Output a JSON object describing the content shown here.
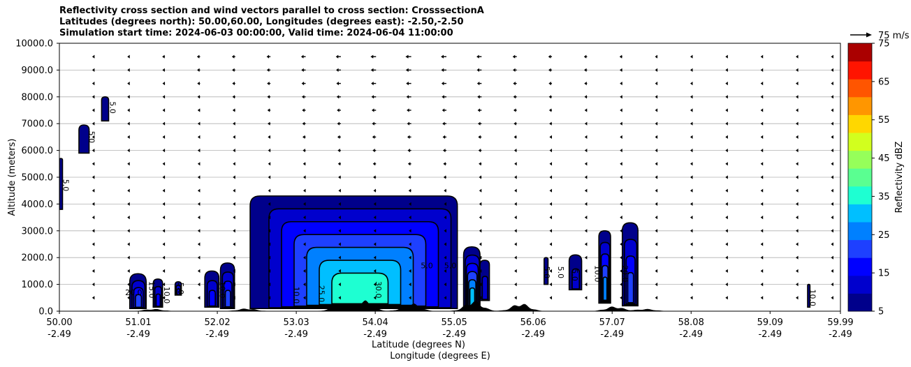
{
  "title_lines": [
    "Reflectivity cross section and wind vectors parallel to cross section: CrosssectionA",
    "Latitudes (degrees north): 50.00,60.00, Longitudes (degrees east): -2.50,-2.50",
    "Simulation start time: 2024-06-03 00:00:00, Valid time: 2024-06-04 11:00:00"
  ],
  "chart_data": {
    "type": "contourf",
    "xlabel_lat": "Latitude (degrees N)",
    "xlabel_lon": "Longitude (degrees E)",
    "ylabel": "Altitude (meters)",
    "xlim": [
      50.0,
      59.99
    ],
    "ylim": [
      0,
      10000
    ],
    "x_ticks": [
      {
        "lat": "50.00",
        "lon": "-2.49",
        "x": 50.0
      },
      {
        "lat": "51.01",
        "lon": "-2.49",
        "x": 51.01
      },
      {
        "lat": "52.02",
        "lon": "-2.49",
        "x": 52.02
      },
      {
        "lat": "53.03",
        "lon": "-2.49",
        "x": 53.03
      },
      {
        "lat": "54.04",
        "lon": "-2.49",
        "x": 54.04
      },
      {
        "lat": "55.05",
        "lon": "-2.49",
        "x": 55.05
      },
      {
        "lat": "56.06",
        "lon": "-2.49",
        "x": 56.06
      },
      {
        "lat": "57.07",
        "lon": "-2.49",
        "x": 57.07
      },
      {
        "lat": "58.08",
        "lon": "-2.49",
        "x": 58.08
      },
      {
        "lat": "59.09",
        "lon": "-2.49",
        "x": 59.09
      },
      {
        "lat": "59.99",
        "lon": "-2.49",
        "x": 59.99
      }
    ],
    "y_ticks": [
      {
        "label": "0.0",
        "v": 0
      },
      {
        "label": "1000.0",
        "v": 1000
      },
      {
        "label": "2000.0",
        "v": 2000
      },
      {
        "label": "3000.0",
        "v": 3000
      },
      {
        "label": "4000.0",
        "v": 4000
      },
      {
        "label": "5000.0",
        "v": 5000
      },
      {
        "label": "6000.0",
        "v": 6000
      },
      {
        "label": "7000.0",
        "v": 7000
      },
      {
        "label": "8000.0",
        "v": 8000
      },
      {
        "label": "9000.0",
        "v": 9000
      },
      {
        "label": "10000.0",
        "v": 10000
      }
    ],
    "colorbar": {
      "label": "Reflectivity dBZ",
      "levels": [
        5,
        10,
        15,
        20,
        25,
        30,
        35,
        40,
        45,
        50,
        55,
        60,
        65,
        70,
        75
      ],
      "colors": [
        "#00008b",
        "#0000cd",
        "#0000ff",
        "#1e40ff",
        "#0080ff",
        "#00bfff",
        "#1effd2",
        "#5aff91",
        "#96ff5a",
        "#d2ff1e",
        "#ffd700",
        "#ff9600",
        "#ff5500",
        "#ff1400",
        "#aa0000"
      ],
      "tick_labels": [
        "5",
        "15",
        "25",
        "35",
        "45",
        "55",
        "65",
        "75"
      ]
    },
    "quiver_key": {
      "label": "75 m/s",
      "value": 75
    },
    "wind_field": {
      "columns_lat": [
        50.0,
        50.45,
        50.9,
        51.35,
        51.8,
        52.25,
        52.7,
        53.15,
        53.6,
        54.05,
        54.5,
        54.95,
        55.4,
        55.85,
        56.3,
        56.75,
        57.2,
        57.65,
        58.1,
        58.55,
        59.0,
        59.45,
        59.9
      ],
      "rows_alt": [
        9500,
        9000,
        8500,
        8000,
        7500,
        7000,
        6500,
        6000,
        5500,
        5000,
        4500,
        4000,
        3500,
        3000,
        2500,
        2000,
        1500,
        1000,
        500
      ],
      "u_upper_mps": [
        -2,
        -8,
        -10,
        -12,
        -14,
        -15,
        -17,
        -20,
        -22,
        -24,
        -25,
        -24,
        -22,
        -18,
        -16,
        -14,
        -12,
        -11,
        -10,
        -8,
        -7,
        -5,
        -2
      ]
    },
    "terrain_peaks": [
      {
        "lat": 51.2,
        "height": 80
      },
      {
        "lat": 52.4,
        "height": 100
      },
      {
        "lat": 53.6,
        "height": 250
      },
      {
        "lat": 53.9,
        "height": 400
      },
      {
        "lat": 54.5,
        "height": 300
      },
      {
        "lat": 55.3,
        "height": 400
      },
      {
        "lat": 55.9,
        "height": 300
      },
      {
        "lat": 57.1,
        "height": 180
      },
      {
        "lat": 57.5,
        "height": 80
      }
    ],
    "echo_cells": [
      {
        "lat_min": 50.0,
        "lat_max": 50.04,
        "alt_min": 3800,
        "alt_max": 5700,
        "max_dbz": 10
      },
      {
        "lat_min": 50.25,
        "lat_max": 50.38,
        "alt_min": 5900,
        "alt_max": 6950,
        "max_dbz": 10
      },
      {
        "lat_min": 50.54,
        "lat_max": 50.63,
        "alt_min": 7100,
        "alt_max": 8000,
        "max_dbz": 10
      },
      {
        "lat_min": 50.9,
        "lat_max": 51.11,
        "alt_min": 100,
        "alt_max": 1400,
        "max_dbz": 25
      },
      {
        "lat_min": 51.2,
        "lat_max": 51.32,
        "alt_min": 150,
        "alt_max": 1200,
        "max_dbz": 20
      },
      {
        "lat_min": 51.48,
        "lat_max": 51.56,
        "alt_min": 600,
        "alt_max": 1100,
        "max_dbz": 20
      },
      {
        "lat_min": 51.86,
        "lat_max": 52.04,
        "alt_min": 150,
        "alt_max": 1500,
        "max_dbz": 20
      },
      {
        "lat_min": 52.06,
        "lat_max": 52.24,
        "alt_min": 100,
        "alt_max": 1800,
        "max_dbz": 25
      },
      {
        "lat_min": 52.44,
        "lat_max": 55.09,
        "alt_min": 100,
        "alt_max": 4300,
        "max_dbz": 40
      },
      {
        "lat_min": 55.17,
        "lat_max": 55.38,
        "alt_min": 100,
        "alt_max": 2400,
        "max_dbz": 35
      },
      {
        "lat_min": 55.38,
        "lat_max": 55.5,
        "alt_min": 400,
        "alt_max": 1900,
        "max_dbz": 15
      },
      {
        "lat_min": 56.2,
        "lat_max": 56.25,
        "alt_min": 1000,
        "alt_max": 2000,
        "max_dbz": 10
      },
      {
        "lat_min": 56.52,
        "lat_max": 56.68,
        "alt_min": 800,
        "alt_max": 2100,
        "max_dbz": 15
      },
      {
        "lat_min": 56.9,
        "lat_max": 57.05,
        "alt_min": 300,
        "alt_max": 3000,
        "max_dbz": 30
      },
      {
        "lat_min": 57.2,
        "lat_max": 57.4,
        "alt_min": 200,
        "alt_max": 3300,
        "max_dbz": 25
      },
      {
        "lat_min": 59.57,
        "lat_max": 59.6,
        "alt_min": 150,
        "alt_max": 1000,
        "max_dbz": 10
      }
    ],
    "contour_labels": [
      {
        "text": "5.0",
        "lat": 50.05,
        "alt": 4700,
        "rot": 90
      },
      {
        "text": "5.0",
        "lat": 50.38,
        "alt": 6500,
        "rot": 90
      },
      {
        "text": "5.0",
        "lat": 50.65,
        "alt": 7600,
        "rot": 90
      },
      {
        "text": "20.0",
        "lat": 50.95,
        "alt": 600,
        "rot": 0
      },
      {
        "text": "15.0",
        "lat": 51.15,
        "alt": 800,
        "rot": 90
      },
      {
        "text": "10.0",
        "lat": 51.34,
        "alt": 600,
        "rot": 90
      },
      {
        "text": "5.0",
        "lat": 51.52,
        "alt": 850,
        "rot": 90
      },
      {
        "text": "10.0",
        "lat": 52.05,
        "alt": 800,
        "rot": 90
      },
      {
        "text": "10.0",
        "lat": 53.0,
        "alt": 600,
        "rot": 90
      },
      {
        "text": "25.0",
        "lat": 53.32,
        "alt": 650,
        "rot": 90
      },
      {
        "text": "30.0",
        "lat": 54.05,
        "alt": 800,
        "rot": 90
      },
      {
        "text": "5.0",
        "lat": 54.7,
        "alt": 1600,
        "rot": 0
      },
      {
        "text": "5.0",
        "lat": 55.0,
        "alt": 1600,
        "rot": 0
      },
      {
        "text": "5.0",
        "lat": 56.2,
        "alt": 1450,
        "rot": 90
      },
      {
        "text": "5.0",
        "lat": 56.38,
        "alt": 1450,
        "rot": 90
      },
      {
        "text": "5.0",
        "lat": 56.56,
        "alt": 1350,
        "rot": 90
      },
      {
        "text": "10.0",
        "lat": 56.85,
        "alt": 1400,
        "rot": 90
      },
      {
        "text": "20.0",
        "lat": 57.2,
        "alt": 1400,
        "rot": 90
      },
      {
        "text": "10.0",
        "lat": 59.6,
        "alt": 500,
        "rot": 90
      }
    ]
  }
}
